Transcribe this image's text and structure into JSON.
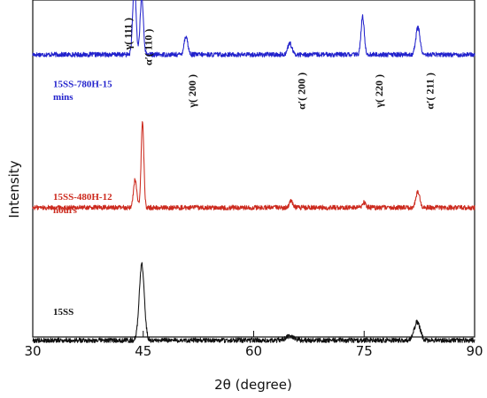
{
  "chart_data": {
    "type": "line",
    "title": "",
    "xlabel": "2θ (degree)",
    "ylabel": "Intensity",
    "xlim": [
      30,
      90
    ],
    "x_ticks": [
      30,
      45,
      60,
      75,
      90
    ],
    "y_ticks_visible": false,
    "grid": false,
    "series": [
      {
        "name": "15SS-780H-15 mins",
        "label_lines": [
          "15SS-780H-15",
          "mins"
        ],
        "color": "#2222cc",
        "baseline": 0.86,
        "peaks": [
          {
            "x": 43.8,
            "height": 9.1,
            "width": 0.22
          },
          {
            "x": 44.8,
            "height": 7.1,
            "width": 0.22
          },
          {
            "x": 50.8,
            "height": 2.3,
            "width": 0.25
          },
          {
            "x": 64.9,
            "height": 1.4,
            "width": 0.28
          },
          {
            "x": 74.8,
            "height": 4.7,
            "width": 0.22
          },
          {
            "x": 82.3,
            "height": 3.4,
            "width": 0.28
          }
        ]
      },
      {
        "name": "15SS-480H-12 hours",
        "label_lines": [
          "15SS-480H-12",
          "hours"
        ],
        "color": "#cc2a1e",
        "baseline": 0.39,
        "peaks": [
          {
            "x": 43.9,
            "height": 3.5,
            "width": 0.22
          },
          {
            "x": 44.9,
            "height": 10.8,
            "width": 0.18
          },
          {
            "x": 65.1,
            "height": 0.8,
            "width": 0.22
          },
          {
            "x": 75.0,
            "height": 0.6,
            "width": 0.25
          },
          {
            "x": 82.3,
            "height": 1.9,
            "width": 0.28
          }
        ]
      },
      {
        "name": "15SS",
        "label_lines": [
          "15SS"
        ],
        "color": "#111111",
        "baseline": 0.0,
        "peaks": [
          {
            "x": 44.8,
            "height": 9.5,
            "width": 0.34
          },
          {
            "x": 64.9,
            "height": 0.5,
            "width": 0.55
          },
          {
            "x": 82.2,
            "height": 2.3,
            "width": 0.4
          }
        ]
      }
    ],
    "annotations": [
      {
        "text": "γ( 111 )",
        "x": 43.4,
        "y": 0.9
      },
      {
        "text": "α′( 110 )",
        "x": 46.2,
        "y": 0.86
      },
      {
        "text": "γ( 200 )",
        "x": 52.1,
        "y": 0.73
      },
      {
        "text": "α′( 200 )",
        "x": 67.0,
        "y": 0.73
      },
      {
        "text": "γ( 220 )",
        "x": 77.5,
        "y": 0.73
      },
      {
        "text": "α′( 211 )",
        "x": 84.4,
        "y": 0.73
      }
    ]
  }
}
